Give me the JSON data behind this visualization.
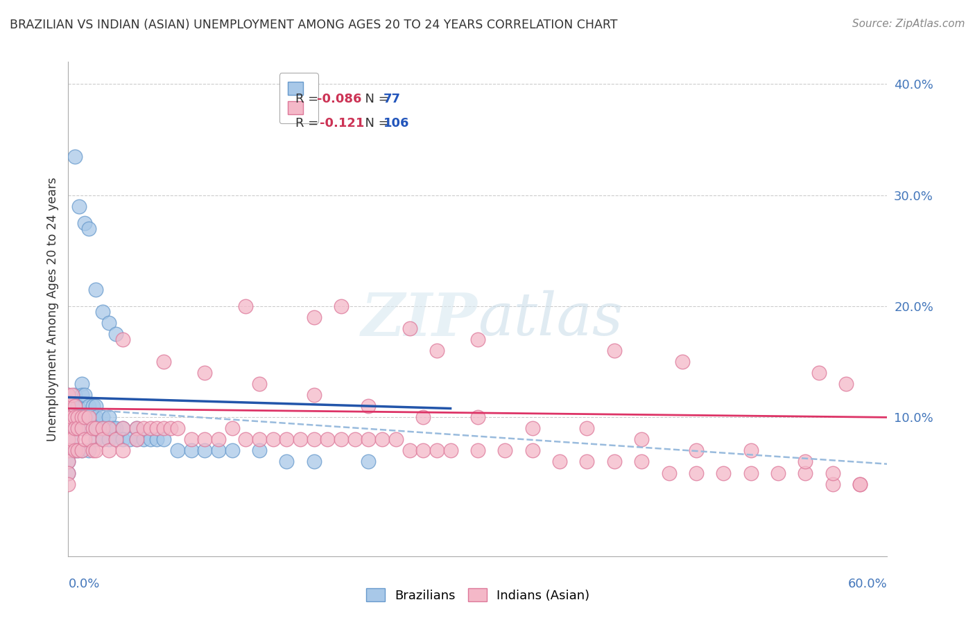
{
  "title": "BRAZILIAN VS INDIAN (ASIAN) UNEMPLOYMENT AMONG AGES 20 TO 24 YEARS CORRELATION CHART",
  "source": "Source: ZipAtlas.com",
  "ylabel": "Unemployment Among Ages 20 to 24 years",
  "xlim": [
    0.0,
    0.6
  ],
  "ylim": [
    -0.025,
    0.42
  ],
  "ytick_vals": [
    0.1,
    0.2,
    0.3,
    0.4
  ],
  "ytick_labels": [
    "10.0%",
    "20.0%",
    "30.0%",
    "40.0%"
  ],
  "watermark_text": "ZIPatlas",
  "blue_color": "#a8c8e8",
  "blue_edge_color": "#6699cc",
  "blue_line_color": "#2255aa",
  "pink_color": "#f4b8c8",
  "pink_edge_color": "#dd7799",
  "pink_line_color": "#dd3366",
  "dashed_line_color": "#99bbdd",
  "background_color": "#ffffff",
  "grid_color": "#cccccc",
  "title_color": "#333333",
  "axis_tick_color": "#4477bb",
  "ylabel_color": "#333333",
  "source_color": "#888888",
  "legend_edge_color": "#aaaaaa",
  "legend_R_color": "#cc3355",
  "legend_N_color": "#2255bb",
  "blue_legend_R": "-0.086",
  "blue_legend_N": "77",
  "pink_legend_R": "-0.121",
  "pink_legend_N": "106",
  "blue_line_x": [
    0.0,
    0.28
  ],
  "blue_line_y": [
    0.118,
    0.108
  ],
  "pink_line_x": [
    0.0,
    0.6
  ],
  "pink_line_y": [
    0.108,
    0.1
  ],
  "dash_line_x": [
    0.0,
    0.6
  ],
  "dash_line_y": [
    0.108,
    0.058
  ],
  "blue_pts_x": [
    0.0,
    0.0,
    0.0,
    0.0,
    0.0,
    0.0,
    0.0,
    0.0,
    0.003,
    0.003,
    0.003,
    0.003,
    0.005,
    0.005,
    0.005,
    0.005,
    0.005,
    0.007,
    0.007,
    0.007,
    0.007,
    0.01,
    0.01,
    0.01,
    0.01,
    0.01,
    0.012,
    0.012,
    0.012,
    0.015,
    0.015,
    0.015,
    0.015,
    0.018,
    0.018,
    0.018,
    0.02,
    0.02,
    0.02,
    0.02,
    0.022,
    0.025,
    0.025,
    0.025,
    0.027,
    0.03,
    0.03,
    0.03,
    0.033,
    0.035,
    0.035,
    0.04,
    0.04,
    0.045,
    0.05,
    0.05,
    0.055,
    0.06,
    0.065,
    0.07,
    0.08,
    0.09,
    0.1,
    0.11,
    0.12,
    0.14,
    0.16,
    0.18,
    0.22,
    0.005,
    0.008,
    0.012,
    0.015,
    0.02,
    0.025,
    0.03,
    0.035
  ],
  "blue_pts_y": [
    0.12,
    0.11,
    0.1,
    0.09,
    0.08,
    0.07,
    0.06,
    0.05,
    0.11,
    0.1,
    0.08,
    0.07,
    0.12,
    0.11,
    0.1,
    0.09,
    0.07,
    0.11,
    0.1,
    0.09,
    0.07,
    0.13,
    0.12,
    0.1,
    0.09,
    0.07,
    0.12,
    0.1,
    0.09,
    0.11,
    0.1,
    0.09,
    0.07,
    0.11,
    0.1,
    0.09,
    0.11,
    0.1,
    0.09,
    0.08,
    0.09,
    0.1,
    0.09,
    0.08,
    0.09,
    0.1,
    0.09,
    0.08,
    0.09,
    0.09,
    0.08,
    0.09,
    0.08,
    0.08,
    0.09,
    0.08,
    0.08,
    0.08,
    0.08,
    0.08,
    0.07,
    0.07,
    0.07,
    0.07,
    0.07,
    0.07,
    0.06,
    0.06,
    0.06,
    0.335,
    0.29,
    0.275,
    0.27,
    0.215,
    0.195,
    0.185,
    0.175
  ],
  "pink_pts_x": [
    0.0,
    0.0,
    0.0,
    0.0,
    0.0,
    0.0,
    0.0,
    0.0,
    0.0,
    0.003,
    0.003,
    0.003,
    0.005,
    0.005,
    0.005,
    0.005,
    0.007,
    0.007,
    0.007,
    0.01,
    0.01,
    0.01,
    0.012,
    0.012,
    0.015,
    0.015,
    0.018,
    0.018,
    0.02,
    0.02,
    0.025,
    0.025,
    0.03,
    0.03,
    0.035,
    0.04,
    0.04,
    0.05,
    0.05,
    0.055,
    0.06,
    0.065,
    0.07,
    0.075,
    0.08,
    0.09,
    0.1,
    0.11,
    0.12,
    0.13,
    0.14,
    0.15,
    0.16,
    0.17,
    0.18,
    0.19,
    0.2,
    0.21,
    0.22,
    0.23,
    0.24,
    0.25,
    0.26,
    0.27,
    0.28,
    0.3,
    0.32,
    0.34,
    0.36,
    0.38,
    0.4,
    0.42,
    0.44,
    0.46,
    0.48,
    0.5,
    0.52,
    0.54,
    0.56,
    0.58,
    0.04,
    0.07,
    0.1,
    0.14,
    0.18,
    0.22,
    0.26,
    0.3,
    0.34,
    0.38,
    0.42,
    0.46,
    0.5,
    0.54,
    0.56,
    0.18,
    0.25,
    0.3,
    0.4,
    0.45,
    0.55,
    0.57,
    0.58,
    0.13,
    0.2,
    0.27
  ],
  "pink_pts_y": [
    0.12,
    0.11,
    0.1,
    0.09,
    0.08,
    0.07,
    0.06,
    0.05,
    0.04,
    0.12,
    0.1,
    0.08,
    0.11,
    0.1,
    0.09,
    0.07,
    0.1,
    0.09,
    0.07,
    0.1,
    0.09,
    0.07,
    0.1,
    0.08,
    0.1,
    0.08,
    0.09,
    0.07,
    0.09,
    0.07,
    0.09,
    0.08,
    0.09,
    0.07,
    0.08,
    0.09,
    0.07,
    0.09,
    0.08,
    0.09,
    0.09,
    0.09,
    0.09,
    0.09,
    0.09,
    0.08,
    0.08,
    0.08,
    0.09,
    0.08,
    0.08,
    0.08,
    0.08,
    0.08,
    0.08,
    0.08,
    0.08,
    0.08,
    0.08,
    0.08,
    0.08,
    0.07,
    0.07,
    0.07,
    0.07,
    0.07,
    0.07,
    0.07,
    0.06,
    0.06,
    0.06,
    0.06,
    0.05,
    0.05,
    0.05,
    0.05,
    0.05,
    0.05,
    0.04,
    0.04,
    0.17,
    0.15,
    0.14,
    0.13,
    0.12,
    0.11,
    0.1,
    0.1,
    0.09,
    0.09,
    0.08,
    0.07,
    0.07,
    0.06,
    0.05,
    0.19,
    0.18,
    0.17,
    0.16,
    0.15,
    0.14,
    0.13,
    0.04,
    0.2,
    0.2,
    0.16
  ]
}
